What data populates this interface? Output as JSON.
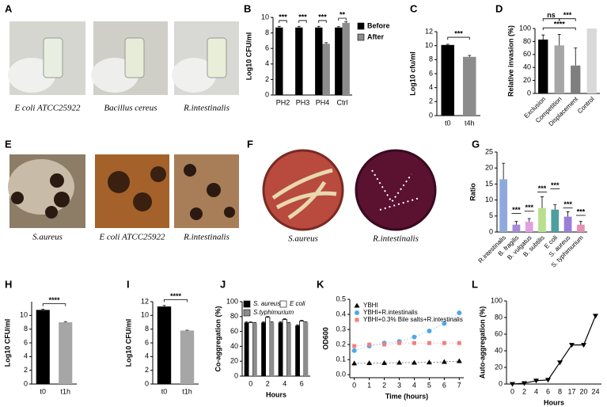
{
  "photo_panels": [
    {
      "panel": "A",
      "captions": [
        "E coli ATCC25922",
        "Bacillus cereus",
        "R.intestinalis"
      ]
    },
    {
      "panel": "E",
      "captions": [
        "S.aureus",
        "E coli ATCC25922",
        "R.intestinalis"
      ]
    },
    {
      "panel": "F",
      "captions": [
        "S.aureus",
        "R.intestinalis"
      ]
    }
  ],
  "chart_data": [
    {
      "panel": "B",
      "type": "bar",
      "categories": [
        "PH2",
        "PH3",
        "PH4",
        "Ctrl"
      ],
      "series": [
        {
          "name": "Before",
          "color": "#000000",
          "values": [
            8.7,
            8.7,
            8.7,
            8.7
          ],
          "errors": [
            0.15,
            0.15,
            0.15,
            0.1
          ]
        },
        {
          "name": "After",
          "color": "#8c8c8c",
          "values": [
            null,
            null,
            6.6,
            9.3
          ],
          "errors": [
            null,
            null,
            0.15,
            0.15
          ]
        }
      ],
      "ylabel": "Log10 CFU/ml",
      "ylim": [
        0,
        10
      ],
      "yticks": [
        0,
        2,
        4,
        6,
        8,
        10
      ],
      "annotations": [
        "***",
        "***",
        "***",
        "**"
      ],
      "legend": "upper right"
    },
    {
      "panel": "C",
      "type": "bar",
      "categories": [
        "t0",
        "t4h"
      ],
      "values": [
        10.1,
        8.4
      ],
      "errors": [
        0.1,
        0.2
      ],
      "colors": [
        "#000000",
        "#8c8c8c"
      ],
      "ylabel": "Log10 cfu/ml",
      "ylim": [
        0,
        12
      ],
      "yticks": [
        0,
        2,
        4,
        6,
        8,
        10,
        12
      ],
      "annotations": [
        "***"
      ]
    },
    {
      "panel": "D",
      "type": "bar",
      "categories": [
        "Exclusion",
        "Competition",
        "Displacement",
        "Control"
      ],
      "values": [
        83,
        74,
        43,
        100
      ],
      "errors": [
        7,
        17,
        27,
        0
      ],
      "colors": [
        "#000000",
        "#a6a6a6",
        "#7f7f7f",
        "#d9d9d9"
      ],
      "ylabel": "Relative invasion (%)",
      "ylim": [
        0,
        100
      ],
      "yticks": [
        0,
        20,
        40,
        60,
        80,
        100
      ],
      "annotations": [
        "ns",
        "***",
        "****"
      ]
    },
    {
      "panel": "G",
      "type": "bar",
      "categories": [
        "R.intestinalis",
        "B. fragilis",
        "B. vulgatus",
        "B. subtilis",
        "E coli",
        "S. aureus",
        "S. typhimurium"
      ],
      "values": [
        16.5,
        2.3,
        3.2,
        7.5,
        7.0,
        4.8,
        2.3
      ],
      "errors": [
        5,
        1,
        1,
        3.5,
        1.5,
        1.5,
        1
      ],
      "colors": [
        "#8fa9dc",
        "#a58ad6",
        "#e29fe0",
        "#b8e08f",
        "#4f9ea0",
        "#9a7fd6",
        "#e790b8"
      ],
      "ylabel": "Ratio",
      "ylim": [
        0,
        25
      ],
      "yticks": [
        0,
        5,
        10,
        15,
        20,
        25
      ],
      "annotations": [
        "***",
        "***",
        "***",
        "***",
        "***",
        "***"
      ]
    },
    {
      "panel": "H",
      "type": "bar",
      "categories": [
        "t0",
        "t1h"
      ],
      "values": [
        10.8,
        9.0
      ],
      "errors": [
        0.1,
        0.1
      ],
      "colors": [
        "#000000",
        "#a6a6a6"
      ],
      "ylabel": "Log10 CFU/ml",
      "ylim": [
        0,
        12
      ],
      "yticks": [
        0,
        2,
        4,
        6,
        8,
        10
      ],
      "annotations": [
        "****"
      ]
    },
    {
      "panel": "I",
      "type": "bar",
      "categories": [
        "t0",
        "t1h"
      ],
      "values": [
        11.3,
        7.8
      ],
      "errors": [
        0.15,
        0.05
      ],
      "colors": [
        "#000000",
        "#a6a6a6"
      ],
      "ylabel": "Log10 CFU/ml",
      "ylim": [
        0,
        12
      ],
      "yticks": [
        0,
        2,
        4,
        6,
        8,
        10,
        12
      ],
      "annotations": [
        "****"
      ]
    },
    {
      "panel": "J",
      "type": "bar",
      "categories": [
        "0",
        "2",
        "4",
        "6"
      ],
      "series": [
        {
          "name": "S. aureus",
          "color": "#000000",
          "values": [
            72,
            72,
            72,
            68
          ],
          "errors": [
            1,
            1,
            1,
            1
          ]
        },
        {
          "name": "E coli",
          "color": "#ffffff",
          "values": [
            72,
            79,
            76,
            74
          ],
          "errors": [
            1,
            1,
            1,
            1
          ]
        },
        {
          "name": "S.typhimurium",
          "color": "#8c8c8c",
          "values": [
            71,
            72,
            71,
            72
          ],
          "errors": [
            1,
            1,
            1,
            1
          ]
        }
      ],
      "ylabel": "Co-aggregation (%)",
      "xlabel": "Hours",
      "ylim": [
        0,
        100
      ],
      "yticks": [
        0,
        20,
        40,
        60,
        80,
        100
      ],
      "legend": "upper left"
    },
    {
      "panel": "K",
      "type": "line",
      "x": [
        0,
        1,
        2,
        3,
        4,
        5,
        6,
        7
      ],
      "series": [
        {
          "name": "YBHI",
          "color": "#000000",
          "marker": "triangle",
          "values": [
            0.075,
            0.077,
            0.078,
            0.08,
            0.08,
            0.082,
            0.085,
            0.09
          ]
        },
        {
          "name": "YBHI+R.intestinalis",
          "color": "#4fa8e8",
          "marker": "circle",
          "values": [
            0.16,
            0.19,
            0.21,
            0.22,
            0.25,
            0.29,
            0.34,
            0.41
          ]
        },
        {
          "name": "YBHI+0.3% Bile salts+R.intestinalis",
          "color": "#f08080",
          "marker": "square",
          "values": [
            0.19,
            0.2,
            0.2,
            0.21,
            0.21,
            0.21,
            0.21,
            0.21
          ]
        }
      ],
      "ylabel": "OD600",
      "xlabel": "Time (hours)",
      "xlim": [
        -0.3,
        7.3
      ],
      "xticks": [
        0,
        1,
        2,
        3,
        4,
        5,
        6,
        7
      ],
      "ylim": [
        -0.02,
        0.5
      ],
      "yticks": [
        {
          "value": 0,
          "label": "0.0"
        },
        0.1,
        0.2,
        0.3,
        0.4,
        0.5
      ],
      "legend": "upper left"
    },
    {
      "panel": "L",
      "type": "line",
      "categories": [
        "0",
        "2",
        "4",
        "6",
        "8",
        "17",
        "20",
        "24"
      ],
      "values": [
        0,
        1,
        4,
        5,
        26,
        47,
        47,
        82
      ],
      "color": "#000000",
      "marker": "triangle-down",
      "ylabel": "Auto-aggregation (%)",
      "xlabel": "Hours",
      "ylim": [
        0,
        100
      ],
      "yticks": [
        0,
        20,
        40,
        60,
        80,
        100
      ]
    }
  ]
}
